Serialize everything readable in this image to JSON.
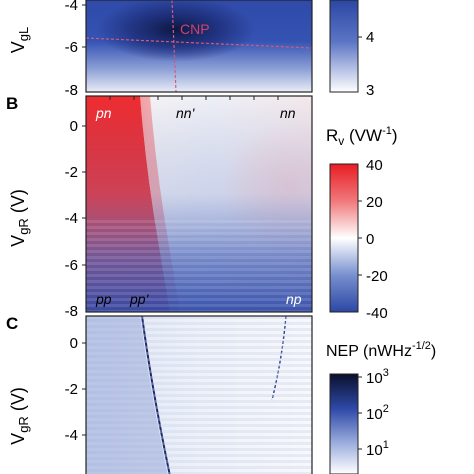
{
  "chart_data": [
    {
      "type": "heatmap",
      "panel": "",
      "ylabel_fragment": "V",
      "ylabel_sub_fragment": "gL",
      "y_ticks": [
        "-4",
        "-6",
        "-8"
      ],
      "annotations": [
        "CNP"
      ],
      "colorbar": {
        "title": "",
        "ticks": [
          "4",
          "3"
        ],
        "range": [
          3,
          4.5
        ]
      },
      "features": {
        "cnp_vertical_x": 0.38,
        "cnp_line_y": -5.7
      }
    },
    {
      "type": "heatmap",
      "panel": "B",
      "ylabel": "V",
      "ylabel_sub": "gR",
      "ylabel_unit": " (V)",
      "y_ticks": [
        "0",
        "-2",
        "-4",
        "-6",
        "-8"
      ],
      "ylim": [
        -8,
        1
      ],
      "region_labels": [
        "pn",
        "nn'",
        "nn",
        "pp",
        "pp'",
        "np"
      ],
      "colorbar": {
        "title_main": "R",
        "title_sub": "v",
        "title_unit": " (VW",
        "title_sup": "-1",
        "title_close": ")",
        "ticks": [
          "40",
          "20",
          "0",
          "-20",
          "-40"
        ],
        "range": [
          -40,
          40
        ]
      },
      "values_summary": {
        "pn_region": 40,
        "nn_region": 10,
        "np_region": -25,
        "boundary_contrast": -30
      }
    },
    {
      "type": "heatmap",
      "panel": "C",
      "ylabel": "V",
      "ylabel_sub": "gR",
      "ylabel_unit": " (V)",
      "y_ticks": [
        "0",
        "-2",
        "-4"
      ],
      "colorbar": {
        "title": "NEP (nWHz",
        "title_sup": "-1/2",
        "title_close": ")",
        "ticks": [
          {
            "base": "10",
            "exp": "3"
          },
          {
            "base": "10",
            "exp": "2"
          },
          {
            "base": "10",
            "exp": "1"
          }
        ],
        "log_scale": true,
        "range": [
          10,
          1000
        ]
      }
    }
  ]
}
